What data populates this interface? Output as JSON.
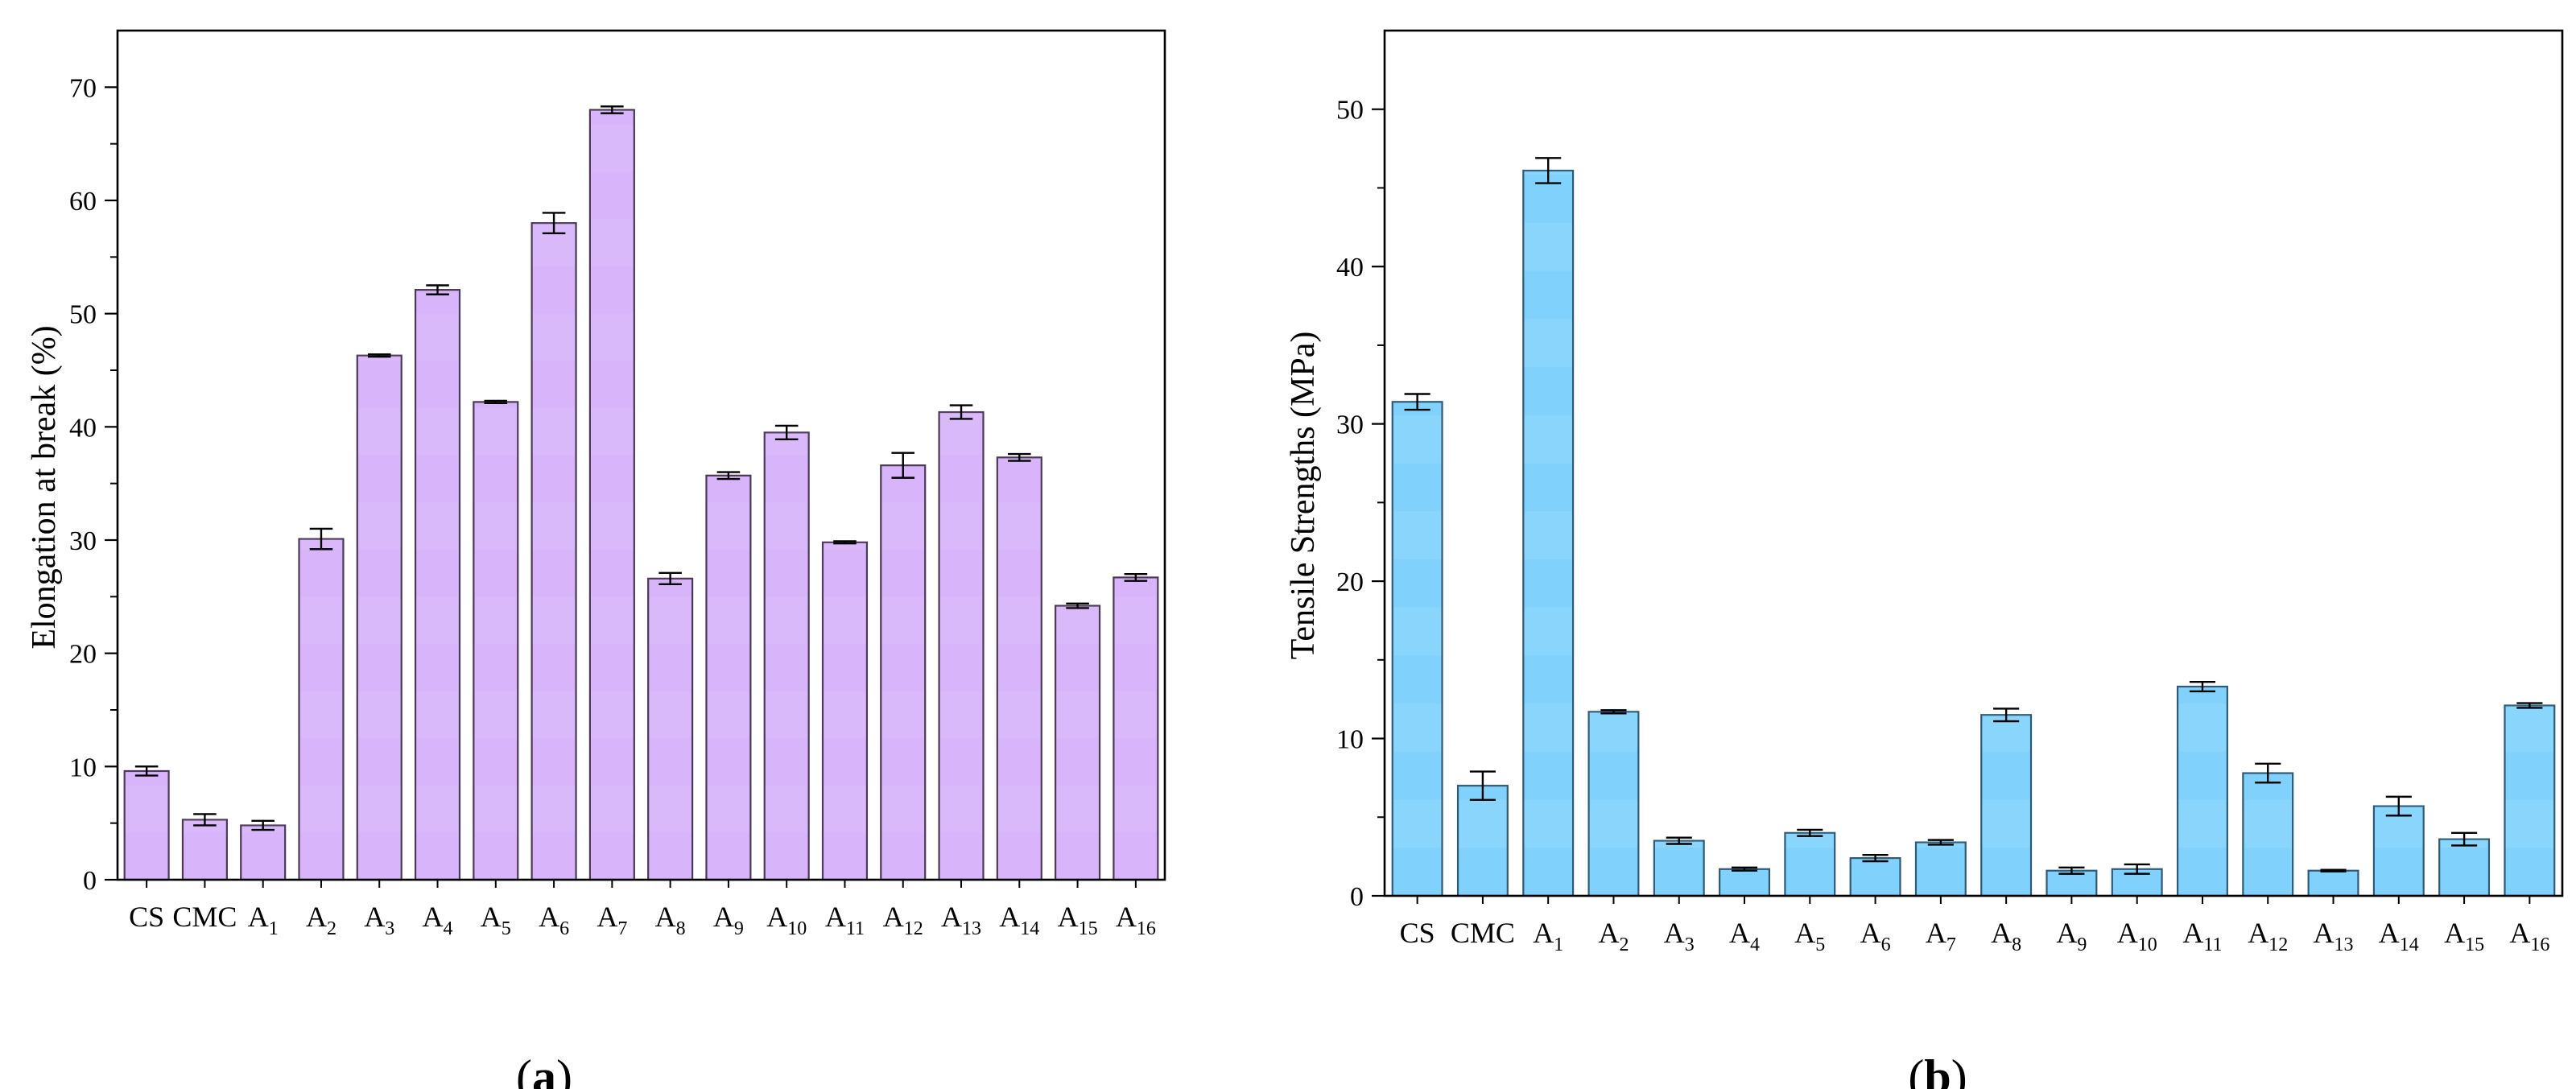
{
  "chart_data": [
    {
      "type": "bar",
      "panel_label": "a",
      "title": "",
      "xlabel": "",
      "ylabel": "Elongation at break (%)",
      "ylim": [
        0,
        75
      ],
      "yticks": [
        0,
        10,
        20,
        30,
        40,
        50,
        60,
        70
      ],
      "bar_color": "#d8b4fb",
      "bar_edge": "#4a3a55",
      "categories": [
        {
          "base": "CS",
          "sub": ""
        },
        {
          "base": "CMC",
          "sub": ""
        },
        {
          "base": "A",
          "sub": "1"
        },
        {
          "base": "A",
          "sub": "2"
        },
        {
          "base": "A",
          "sub": "3"
        },
        {
          "base": "A",
          "sub": "4"
        },
        {
          "base": "A",
          "sub": "5"
        },
        {
          "base": "A",
          "sub": "6"
        },
        {
          "base": "A",
          "sub": "7"
        },
        {
          "base": "A",
          "sub": "8"
        },
        {
          "base": "A",
          "sub": "9"
        },
        {
          "base": "A",
          "sub": "10"
        },
        {
          "base": "A",
          "sub": "11"
        },
        {
          "base": "A",
          "sub": "12"
        },
        {
          "base": "A",
          "sub": "13"
        },
        {
          "base": "A",
          "sub": "14"
        },
        {
          "base": "A",
          "sub": "15"
        },
        {
          "base": "A",
          "sub": "16"
        }
      ],
      "values": [
        9.6,
        5.3,
        4.8,
        30.1,
        46.3,
        52.1,
        42.2,
        58.0,
        68.0,
        26.6,
        35.7,
        39.5,
        29.8,
        36.6,
        41.3,
        37.3,
        24.2,
        26.7
      ],
      "errors": [
        0.4,
        0.5,
        0.4,
        0.9,
        0.1,
        0.4,
        0.1,
        0.9,
        0.3,
        0.5,
        0.3,
        0.6,
        0.1,
        1.1,
        0.6,
        0.3,
        0.2,
        0.3
      ]
    },
    {
      "type": "bar",
      "panel_label": "b",
      "title": "",
      "xlabel": "",
      "ylabel": "Tensile Strengths (MPa)",
      "ylim": [
        0,
        55
      ],
      "yticks": [
        0,
        10,
        20,
        30,
        40,
        50
      ],
      "bar_color": "#80d2fc",
      "bar_edge": "#2e5a78",
      "categories": [
        {
          "base": "CS",
          "sub": ""
        },
        {
          "base": "CMC",
          "sub": ""
        },
        {
          "base": "A",
          "sub": "1"
        },
        {
          "base": "A",
          "sub": "2"
        },
        {
          "base": "A",
          "sub": "3"
        },
        {
          "base": "A",
          "sub": "4"
        },
        {
          "base": "A",
          "sub": "5"
        },
        {
          "base": "A",
          "sub": "6"
        },
        {
          "base": "A",
          "sub": "7"
        },
        {
          "base": "A",
          "sub": "8"
        },
        {
          "base": "A",
          "sub": "9"
        },
        {
          "base": "A",
          "sub": "10"
        },
        {
          "base": "A",
          "sub": "11"
        },
        {
          "base": "A",
          "sub": "12"
        },
        {
          "base": "A",
          "sub": "13"
        },
        {
          "base": "A",
          "sub": "14"
        },
        {
          "base": "A",
          "sub": "15"
        },
        {
          "base": "A",
          "sub": "16"
        }
      ],
      "values": [
        31.4,
        7.0,
        46.1,
        11.7,
        3.5,
        1.7,
        4.0,
        2.4,
        3.4,
        11.5,
        1.6,
        1.7,
        13.3,
        7.8,
        1.6,
        5.7,
        3.6,
        12.1
      ],
      "errors": [
        0.5,
        0.9,
        0.8,
        0.1,
        0.2,
        0.1,
        0.2,
        0.2,
        0.15,
        0.4,
        0.2,
        0.3,
        0.3,
        0.6,
        0.05,
        0.6,
        0.4,
        0.15
      ]
    }
  ]
}
